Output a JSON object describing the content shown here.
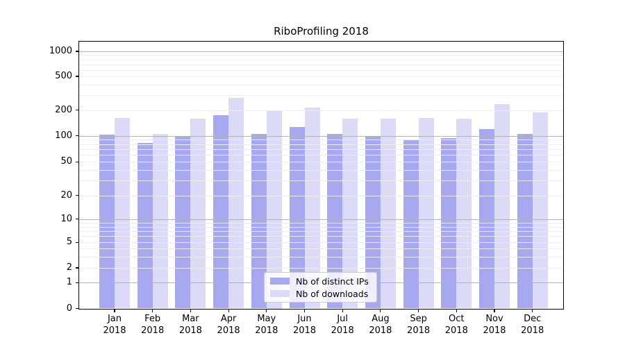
{
  "title": "RiboProfiling 2018",
  "chart_data": {
    "type": "bar",
    "title": "RiboProfiling 2018",
    "categories": [
      "Jan 2018",
      "Feb 2018",
      "Mar 2018",
      "Apr 2018",
      "May 2018",
      "Jun 2018",
      "Jul 2018",
      "Aug 2018",
      "Sep 2018",
      "Oct 2018",
      "Nov 2018",
      "Dec 2018"
    ],
    "series": [
      {
        "name": "Nb of distinct IPs",
        "color": "#a8a8f0",
        "values": [
          103,
          83,
          98,
          173,
          105,
          127,
          104,
          98,
          90,
          93,
          119,
          104
        ]
      },
      {
        "name": "Nb of downloads",
        "color": "#dbdbf8",
        "values": [
          160,
          104,
          158,
          278,
          200,
          213,
          158,
          157,
          162,
          158,
          237,
          187
        ]
      }
    ],
    "xlabel": "",
    "ylabel": "",
    "yscale": "symlog",
    "ylim": [
      0,
      1400
    ],
    "y_ticks": [
      0,
      1,
      2,
      5,
      10,
      20,
      50,
      100,
      200,
      500,
      1000
    ],
    "grid": true,
    "legend_position": "lower center"
  },
  "legend": {
    "items": [
      {
        "label": "Nb of distinct IPs",
        "color": "#a8a8f0"
      },
      {
        "label": "Nb of downloads",
        "color": "#dbdbf8"
      }
    ]
  },
  "colors": {
    "bar_ips": "#a8a8f0",
    "bar_downloads": "#dbdbf8",
    "grid_major": "#b3b3b3",
    "grid_minor": "#ededed",
    "axis": "#000000",
    "legend_border": "#cccccc",
    "background": "#ffffff"
  }
}
